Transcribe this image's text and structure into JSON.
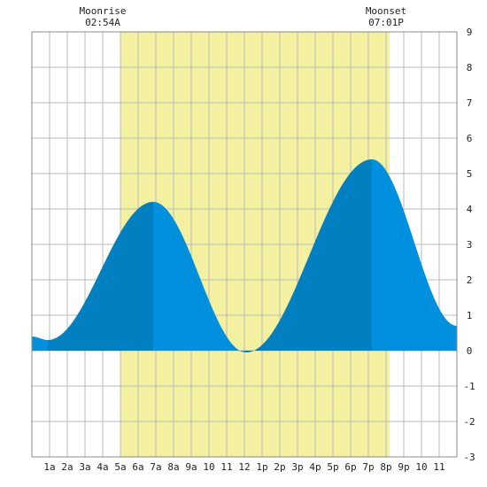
{
  "moon": {
    "moonrise_label": "Moonrise",
    "moonrise_time": "02:54A",
    "moonset_label": "Moonset",
    "moonset_time": "07:01P"
  },
  "colors": {
    "daylight": "#f3f0a0",
    "tide_rising": "#0080c0",
    "tide_falling": "#0090dd",
    "grid": "#bbbbbb",
    "frame": "#888888",
    "background": "#ffffff"
  },
  "chart_data": {
    "type": "area",
    "title": "",
    "xlabel": "",
    "ylabel": "",
    "x_tick_labels": [
      "1a",
      "2a",
      "3a",
      "4a",
      "5a",
      "6a",
      "7a",
      "8a",
      "9a",
      "10",
      "11",
      "12",
      "1p",
      "2p",
      "3p",
      "4p",
      "5p",
      "6p",
      "7p",
      "8p",
      "9p",
      "10",
      "11"
    ],
    "y_ticks": [
      9,
      8,
      7,
      6,
      5,
      4,
      3,
      2,
      1,
      0,
      -1,
      -2,
      -3
    ],
    "xlim": [
      0,
      24
    ],
    "ylim": [
      -3,
      9
    ],
    "grid": true,
    "daylight_hours": [
      5.0,
      20.2
    ],
    "tide_extremes": [
      {
        "hour": 0.0,
        "height": 0.4
      },
      {
        "hour": 0.9,
        "height": 0.3
      },
      {
        "hour": 6.85,
        "height": 4.2
      },
      {
        "hour": 12.1,
        "height": -0.05
      },
      {
        "hour": 19.2,
        "height": 5.4
      },
      {
        "hour": 24.0,
        "height": 0.7
      }
    ]
  }
}
